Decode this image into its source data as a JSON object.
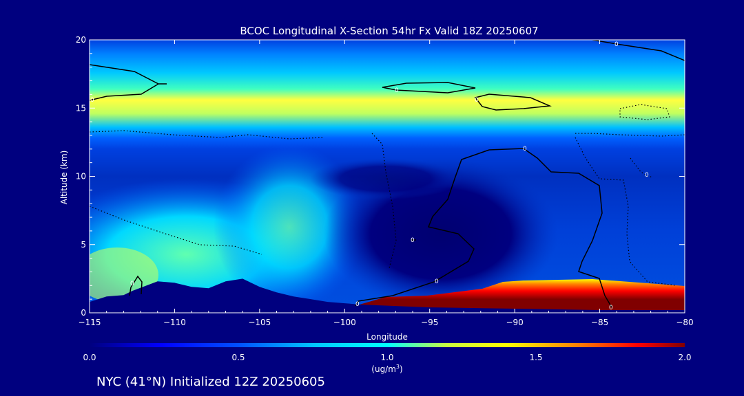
{
  "chart_data": {
    "type": "heatmap",
    "title": "BCOC Longitudinal X-Section 54hr  Fx Valid 18Z 20250607",
    "xlabel": "Longitude",
    "ylabel": "Altitude (km)",
    "xlim": [
      -115,
      -80
    ],
    "ylim": [
      0,
      20
    ],
    "x_ticks": [
      -115,
      -110,
      -105,
      -100,
      -95,
      -90,
      -85,
      -80
    ],
    "x_tick_labels": [
      "−115",
      "−110",
      "−105",
      "−100",
      "−95",
      "−90",
      "−85",
      "−80"
    ],
    "y_ticks": [
      0,
      5,
      10,
      15,
      20
    ],
    "colorbar": {
      "min": 0.0,
      "max": 2.0,
      "ticks": [
        "0.0",
        "0.5",
        "1.0",
        "1.5",
        "2.0"
      ],
      "unit_label": "(ug/m",
      "unit_sup": "3",
      "unit_close": ")"
    },
    "contour_labels": [
      "0",
      "0",
      "0",
      "0",
      "0",
      "0",
      "0",
      "0",
      "0",
      "0",
      "0"
    ],
    "terrain": [
      [
        -115,
        0.8
      ],
      [
        -114,
        1.2
      ],
      [
        -113,
        1.3
      ],
      [
        -112.5,
        1.6
      ],
      [
        -111,
        2.3
      ],
      [
        -110,
        2.2
      ],
      [
        -109,
        1.9
      ],
      [
        -108,
        1.8
      ],
      [
        -107,
        2.3
      ],
      [
        -106,
        2.5
      ],
      [
        -105,
        1.9
      ],
      [
        -104,
        1.5
      ],
      [
        -103,
        1.2
      ],
      [
        -102,
        1.0
      ],
      [
        -101,
        0.8
      ],
      [
        -100,
        0.7
      ],
      [
        -99,
        0.6
      ],
      [
        -95,
        0.4
      ],
      [
        -90,
        0.3
      ],
      [
        -85,
        0.2
      ],
      [
        -80,
        0.2
      ]
    ],
    "colors": {
      "background": "#00007f",
      "low": "#000080",
      "mid": "#00ffff",
      "high": "#ffff00",
      "max": "#800000"
    }
  },
  "footer": {
    "caption": "NYC (41°N) Initialized 12Z 20250605"
  }
}
